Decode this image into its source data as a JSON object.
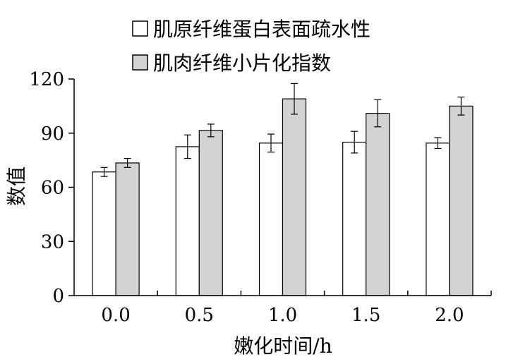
{
  "chart_data": {
    "type": "bar",
    "categories": [
      "0.0",
      "0.5",
      "1.0",
      "1.5",
      "2.0"
    ],
    "series": [
      {
        "name": "肌原纤维蛋白表面疏水性",
        "color": "#ffffff",
        "values": [
          68.5,
          82.5,
          84.5,
          85.0,
          84.5
        ],
        "errors": [
          2.5,
          6.5,
          5.0,
          6.0,
          3.0
        ]
      },
      {
        "name": "肌肉纤维小片化指数",
        "color": "#d3d3d3",
        "values": [
          73.5,
          91.5,
          109.0,
          101.0,
          105.0
        ],
        "errors": [
          2.5,
          3.5,
          8.5,
          7.5,
          5.0
        ]
      }
    ],
    "xlabel": "嫩化时间/h",
    "ylabel": "数值",
    "ylim": [
      0,
      120
    ],
    "yticks": [
      0,
      30,
      60,
      90,
      120
    ],
    "grid": false,
    "legend_position": "top"
  }
}
